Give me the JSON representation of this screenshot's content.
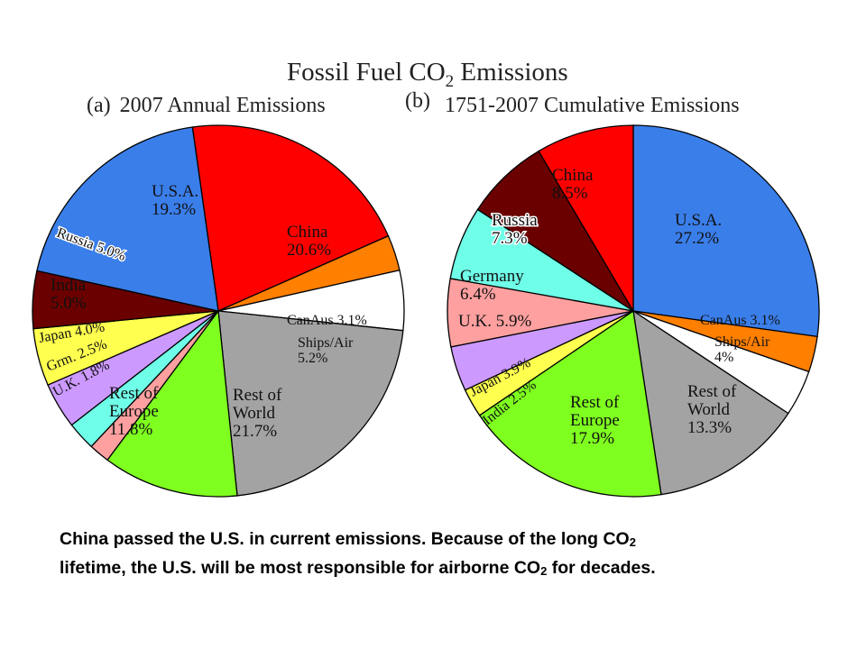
{
  "figure": {
    "title": "Fossil Fuel CO₂ Emissions",
    "panel_a": {
      "letter": "(a)",
      "title": "2007 Annual Emissions"
    },
    "panel_b": {
      "letter": "(b)",
      "title": "1751-2007 Cumulative Emissions"
    }
  },
  "caption": {
    "part1": "China passed the U.S. in current emissions.  Because of the long CO",
    "sub1": "2",
    "part2": "lifetime, the U.S. will be most responsible for airborne CO",
    "sub2": "2",
    "part3": " for decades."
  },
  "colors": {
    "usa": "#3a7ee9",
    "china": "#ff0000",
    "canaus": "#ff7f00",
    "ships_air": "#ffffff",
    "rest_of_world": "#a3a3a3",
    "rest_of_europe": "#7fff1f",
    "uk": "#ffa0a0",
    "germany": "#6fffe8",
    "japan": "#cc99ff",
    "india": "#ffff4f",
    "russia": "#6a0000"
  },
  "chart_data": [
    {
      "type": "pie",
      "title": "2007 Annual Emissions",
      "slices": [
        {
          "key": "china",
          "label": "China",
          "value_text": "20.6%",
          "value": 20.6,
          "color": "#ff0000"
        },
        {
          "key": "canaus",
          "label": "CanAus",
          "value_text": "3.1%",
          "value": 3.1,
          "color": "#ff7f00"
        },
        {
          "key": "ships_air",
          "label": "Ships/Air",
          "value_text": "5.2%",
          "value": 5.2,
          "color": "#ffffff"
        },
        {
          "key": "rest_of_world",
          "label": "Rest of World",
          "value_text": "21.7%",
          "value": 21.7,
          "color": "#a3a3a3"
        },
        {
          "key": "rest_of_europe",
          "label": "Rest of Europe",
          "value_text": "11.8%",
          "value": 11.8,
          "color": "#7fff1f"
        },
        {
          "key": "uk",
          "label": "U.K.",
          "value_text": "1.8%",
          "value": 1.8,
          "color": "#ffa0a0"
        },
        {
          "key": "germany",
          "label": "Grm.",
          "value_text": "2.5%",
          "value": 2.5,
          "color": "#6fffe8"
        },
        {
          "key": "japan",
          "label": "Japan",
          "value_text": "4.0%",
          "value": 4.0,
          "color": "#cc99ff"
        },
        {
          "key": "india",
          "label": "India",
          "value_text": "5.0%",
          "value": 5.0,
          "color": "#ffff4f"
        },
        {
          "key": "russia",
          "label": "Russia",
          "value_text": "5.0%",
          "value": 5.0,
          "color": "#6a0000"
        },
        {
          "key": "usa",
          "label": "U.S.A.",
          "value_text": "19.3%",
          "value": 19.3,
          "color": "#3a7ee9"
        }
      ]
    },
    {
      "type": "pie",
      "title": "1751-2007 Cumulative Emissions",
      "slices": [
        {
          "key": "usa",
          "label": "U.S.A.",
          "value_text": "27.2%",
          "value": 27.2,
          "color": "#3a7ee9"
        },
        {
          "key": "canaus",
          "label": "CanAus",
          "value_text": "3.1%",
          "value": 3.1,
          "color": "#ff7f00"
        },
        {
          "key": "ships_air",
          "label": "Ships/Air",
          "value_text": "4%",
          "value": 4.0,
          "color": "#ffffff"
        },
        {
          "key": "rest_of_world",
          "label": "Rest of World",
          "value_text": "13.3%",
          "value": 13.3,
          "color": "#a3a3a3"
        },
        {
          "key": "rest_of_europe",
          "label": "Rest of Europe",
          "value_text": "17.9%",
          "value": 17.9,
          "color": "#7fff1f"
        },
        {
          "key": "india",
          "label": "India",
          "value_text": "2.5%",
          "value": 2.5,
          "color": "#ffff4f"
        },
        {
          "key": "japan",
          "label": "Japan",
          "value_text": "3.9%",
          "value": 3.9,
          "color": "#cc99ff"
        },
        {
          "key": "uk",
          "label": "U.K.",
          "value_text": "5.9%",
          "value": 5.9,
          "color": "#ffa0a0"
        },
        {
          "key": "germany",
          "label": "Germany",
          "value_text": "6.4%",
          "value": 6.4,
          "color": "#6fffe8"
        },
        {
          "key": "russia",
          "label": "Russia",
          "value_text": "7.3%",
          "value": 7.3,
          "color": "#6a0000"
        },
        {
          "key": "china",
          "label": "China",
          "value_text": "8.5%",
          "value": 8.5,
          "color": "#ff0000"
        }
      ]
    }
  ]
}
